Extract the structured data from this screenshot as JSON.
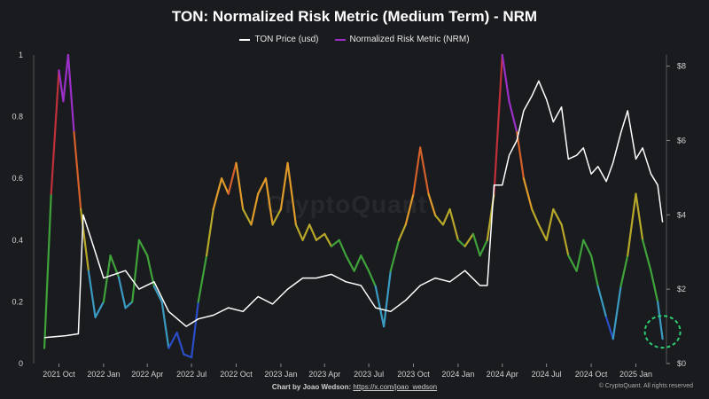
{
  "chart_data": {
    "type": "line",
    "title": "TON: Normalized Risk Metric (Medium Term) - NRM",
    "legend": {
      "placement": "top-center",
      "items": [
        {
          "label": "TON Price (usd)",
          "color": "#ffffff"
        },
        {
          "label": "Normalized Risk Metric (NRM)",
          "color": "#9b30c8"
        }
      ]
    },
    "x_ticks": [
      "2021 Oct",
      "2022 Jan",
      "2022 Apr",
      "2022 Jul",
      "2022 Oct",
      "2023 Jan",
      "2023 Apr",
      "2023 Jul",
      "2023 Oct",
      "2024 Jan",
      "2024 Apr",
      "2024 Jul",
      "2024 Oct",
      "2025 Jan"
    ],
    "y_left_ticks": [
      "0",
      "0.2",
      "0.4",
      "0.6",
      "0.8",
      "1"
    ],
    "y_right_ticks": [
      "$0",
      "$2",
      "$4",
      "$6",
      "$8"
    ],
    "y_left_range": [
      0,
      1
    ],
    "y_right_range": [
      0,
      8.3
    ],
    "grid": false,
    "series": [
      {
        "name": "TON Price (usd)",
        "axis": "right",
        "color": "#ffffff",
        "x": [
          "2021-09-01",
          "2021-10-15",
          "2021-11-10",
          "2021-11-20",
          "2021-12-05",
          "2022-01-01",
          "2022-02-15",
          "2022-03-15",
          "2022-04-15",
          "2022-05-15",
          "2022-06-20",
          "2022-07-15",
          "2022-08-15",
          "2022-09-15",
          "2022-10-15",
          "2022-11-15",
          "2022-12-15",
          "2023-01-15",
          "2023-02-15",
          "2023-03-15",
          "2023-04-15",
          "2023-05-15",
          "2023-06-15",
          "2023-07-15",
          "2023-08-15",
          "2023-09-15",
          "2023-10-15",
          "2023-11-15",
          "2023-12-15",
          "2024-01-15",
          "2024-02-15",
          "2024-03-01",
          "2024-03-15",
          "2024-04-01",
          "2024-04-15",
          "2024-05-01",
          "2024-05-15",
          "2024-06-01",
          "2024-06-15",
          "2024-07-01",
          "2024-07-15",
          "2024-08-01",
          "2024-08-15",
          "2024-09-01",
          "2024-09-15",
          "2024-10-01",
          "2024-10-15",
          "2024-11-01",
          "2024-11-15",
          "2024-12-01",
          "2024-12-15",
          "2025-01-01",
          "2025-01-15",
          "2025-02-01",
          "2025-02-15",
          "2025-02-25"
        ],
        "values": [
          0.7,
          0.75,
          0.8,
          4.0,
          3.4,
          2.3,
          2.5,
          2.0,
          2.2,
          1.4,
          1.0,
          1.2,
          1.3,
          1.5,
          1.4,
          1.8,
          1.6,
          2.0,
          2.3,
          2.3,
          2.4,
          2.2,
          2.1,
          1.5,
          1.4,
          1.7,
          2.1,
          2.3,
          2.2,
          2.5,
          2.1,
          2.1,
          4.8,
          4.8,
          5.6,
          6.0,
          6.8,
          7.2,
          7.6,
          7.1,
          6.5,
          6.9,
          5.5,
          5.6,
          5.8,
          5.1,
          5.3,
          4.9,
          5.4,
          6.2,
          6.8,
          5.5,
          5.8,
          5.1,
          4.8,
          3.8
        ]
      },
      {
        "name": "Normalized Risk Metric (NRM)",
        "axis": "left",
        "color": "#9b30c8",
        "x": [
          "2021-09-01",
          "2021-09-15",
          "2021-10-01",
          "2021-10-10",
          "2021-10-20",
          "2021-11-01",
          "2021-11-15",
          "2021-12-01",
          "2021-12-15",
          "2022-01-01",
          "2022-01-15",
          "2022-02-01",
          "2022-02-15",
          "2022-03-01",
          "2022-03-15",
          "2022-04-01",
          "2022-04-15",
          "2022-05-01",
          "2022-05-15",
          "2022-06-01",
          "2022-06-15",
          "2022-07-01",
          "2022-07-15",
          "2022-08-01",
          "2022-08-15",
          "2022-09-01",
          "2022-09-15",
          "2022-10-01",
          "2022-10-15",
          "2022-11-01",
          "2022-11-15",
          "2022-12-01",
          "2022-12-15",
          "2023-01-01",
          "2023-01-15",
          "2023-02-01",
          "2023-02-15",
          "2023-03-01",
          "2023-03-15",
          "2023-04-01",
          "2023-04-15",
          "2023-05-01",
          "2023-05-15",
          "2023-06-01",
          "2023-06-15",
          "2023-07-01",
          "2023-07-15",
          "2023-08-01",
          "2023-08-15",
          "2023-09-01",
          "2023-09-15",
          "2023-10-01",
          "2023-10-15",
          "2023-11-01",
          "2023-11-15",
          "2023-12-01",
          "2023-12-15",
          "2024-01-01",
          "2024-01-15",
          "2024-02-01",
          "2024-02-15",
          "2024-03-01",
          "2024-03-15",
          "2024-04-01",
          "2024-04-15",
          "2024-05-01",
          "2024-05-15",
          "2024-06-01",
          "2024-06-15",
          "2024-07-01",
          "2024-07-15",
          "2024-08-01",
          "2024-08-15",
          "2024-09-01",
          "2024-09-15",
          "2024-10-01",
          "2024-10-15",
          "2024-11-01",
          "2024-11-15",
          "2024-12-01",
          "2024-12-15",
          "2025-01-01",
          "2025-01-15",
          "2025-02-01",
          "2025-02-15",
          "2025-02-25"
        ],
        "values": [
          0.05,
          0.55,
          0.95,
          0.85,
          1.0,
          0.75,
          0.5,
          0.3,
          0.15,
          0.2,
          0.35,
          0.28,
          0.18,
          0.2,
          0.4,
          0.35,
          0.25,
          0.2,
          0.05,
          0.1,
          0.03,
          0.02,
          0.2,
          0.35,
          0.5,
          0.6,
          0.55,
          0.65,
          0.5,
          0.45,
          0.55,
          0.6,
          0.45,
          0.5,
          0.65,
          0.45,
          0.4,
          0.45,
          0.4,
          0.42,
          0.38,
          0.4,
          0.35,
          0.3,
          0.35,
          0.3,
          0.25,
          0.12,
          0.3,
          0.4,
          0.45,
          0.55,
          0.7,
          0.55,
          0.48,
          0.45,
          0.5,
          0.4,
          0.38,
          0.42,
          0.35,
          0.4,
          0.55,
          1.0,
          0.85,
          0.75,
          0.6,
          0.5,
          0.45,
          0.4,
          0.5,
          0.45,
          0.35,
          0.3,
          0.4,
          0.35,
          0.25,
          0.15,
          0.08,
          0.25,
          0.35,
          0.55,
          0.4,
          0.3,
          0.2,
          0.08
        ]
      }
    ],
    "annotation": "dashed green circle at latest NRM value"
  },
  "watermark": "CryptoQuant",
  "footer": {
    "prefix": "Chart by Joao Wedson:",
    "link": "https://x.com/joao_wedson",
    "copyright": "© CryptoQuant. All rights reserved"
  }
}
